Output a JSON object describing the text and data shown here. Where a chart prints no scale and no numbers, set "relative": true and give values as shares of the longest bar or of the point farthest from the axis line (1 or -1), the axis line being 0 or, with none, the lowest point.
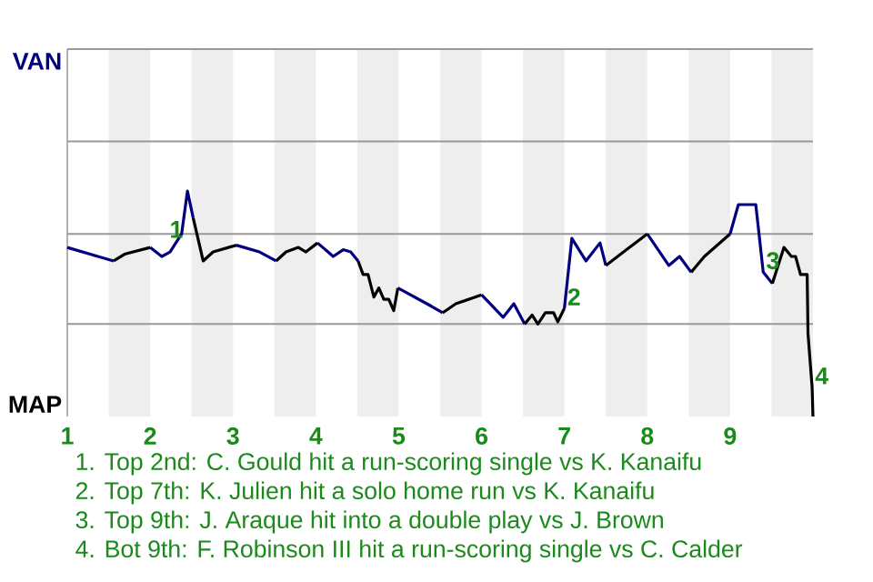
{
  "chart_data": {
    "type": "line",
    "relative": true,
    "xlim": [
      1,
      10
    ],
    "xticks": [
      1,
      2,
      3,
      4,
      5,
      6,
      7,
      8,
      9
    ],
    "ref_lines": [
      {
        "axis": "y",
        "value": 0.41,
        "color": "#999999"
      },
      {
        "axis": "y",
        "value": 0.81,
        "color": "#999999"
      },
      {
        "axis": "y",
        "value": 1.22,
        "color": "#999999"
      },
      {
        "axis": "y",
        "value": 1.63,
        "color": "#999999"
      }
    ],
    "series": [
      {
        "color": "#000080",
        "x": [
          1.0,
          1.37,
          1.56,
          null,
          2.0,
          2.14,
          2.24,
          2.38,
          2.45,
          2.52,
          null,
          3.04,
          3.32,
          3.52,
          null,
          4.02,
          4.21,
          4.33,
          4.42,
          4.51,
          null,
          4.99,
          5.39,
          5.53,
          null,
          6.0,
          6.26,
          6.39,
          6.52,
          null,
          7.0,
          7.09,
          7.26,
          7.43,
          7.5,
          null,
          8.0,
          8.26,
          8.39,
          8.53,
          null,
          9.0,
          9.1,
          9.31,
          9.4,
          9.51
        ],
        "values": [
          0.75,
          0.71,
          0.69,
          null,
          0.75,
          0.71,
          0.73,
          0.81,
          1,
          0.88,
          null,
          0.76,
          0.73,
          0.69,
          null,
          0.77,
          0.71,
          0.74,
          0.73,
          0.69,
          null,
          0.57,
          0.49,
          0.46,
          null,
          0.54,
          0.44,
          0.5,
          0.41,
          null,
          0.48,
          0.79,
          0.69,
          0.77,
          0.67,
          null,
          0.81,
          0.67,
          0.71,
          0.64,
          null,
          0.81,
          0.94,
          0.94,
          0.64,
          0.59
        ]
      },
      {
        "color": "#000000",
        "x": [
          1.56,
          1.69,
          2.0,
          null,
          2.52,
          2.64,
          2.76,
          3.04,
          null,
          3.52,
          3.64,
          3.79,
          3.88,
          4.02,
          null,
          4.51,
          4.57,
          4.63,
          4.7,
          4.76,
          4.82,
          4.88,
          4.94,
          4.99,
          null,
          5.53,
          5.69,
          6.0,
          null,
          6.52,
          6.61,
          6.68,
          6.77,
          6.87,
          6.92,
          7.0,
          null,
          7.5,
          7.75,
          8.0,
          null,
          8.53,
          8.69,
          9.0,
          null,
          9.51,
          9.65,
          9.74,
          9.79,
          9.85,
          9.93,
          9.94,
          9.99,
          10.0
        ],
        "values": [
          0.69,
          0.72,
          0.75,
          null,
          0.88,
          0.69,
          0.73,
          0.76,
          null,
          0.69,
          0.73,
          0.75,
          0.73,
          0.77,
          null,
          0.69,
          0.63,
          0.63,
          0.53,
          0.57,
          0.52,
          0.52,
          0.47,
          0.57,
          null,
          0.46,
          0.5,
          0.54,
          null,
          0.41,
          0.45,
          0.41,
          0.46,
          0.46,
          0.42,
          0.48,
          null,
          0.67,
          0.74,
          0.81,
          null,
          0.64,
          0.71,
          0.81,
          null,
          0.59,
          0.75,
          0.71,
          0.71,
          0.63,
          0.63,
          0.37,
          0.13,
          0
        ]
      }
    ],
    "bands": [
      {
        "axis": "x",
        "from": 1.5,
        "to": 2,
        "color": "#eeeeee"
      },
      {
        "axis": "x",
        "from": 2.5,
        "to": 3,
        "color": "#eeeeee"
      },
      {
        "axis": "x",
        "from": 3.5,
        "to": 4,
        "color": "#eeeeee"
      },
      {
        "axis": "x",
        "from": 4.5,
        "to": 5,
        "color": "#eeeeee"
      },
      {
        "axis": "x",
        "from": 5.5,
        "to": 6,
        "color": "#eeeeee"
      },
      {
        "axis": "x",
        "from": 6.5,
        "to": 7,
        "color": "#eeeeee"
      },
      {
        "axis": "x",
        "from": 7.5,
        "to": 8,
        "color": "#eeeeee"
      },
      {
        "axis": "x",
        "from": 8.5,
        "to": 9,
        "color": "#eeeeee"
      },
      {
        "axis": "x",
        "from": 9.5,
        "to": 10,
        "color": "#eeeeee"
      }
    ],
    "annotations": [
      "VAN",
      "MAP",
      {
        "text": "1",
        "x": 2.52,
        "y": 0.88
      },
      {
        "text": "2",
        "x": 7.0,
        "y": 0.48
      },
      {
        "text": "3",
        "x": 9.4,
        "y": 0.64
      },
      {
        "text": "4",
        "x": 9.99,
        "y": 0.13
      },
      "1. Top 2nd: C. Gould hit a run-scoring single vs K. Kanaifu",
      "2. Top 7th: K. Julien hit a solo home run vs K. Kanaifu",
      "3. Top 9th: J. Araque hit into a double play vs J. Brown",
      "4. Bot 9th: F. Robinson III hit a run-scoring single vs C. Calder"
    ]
  }
}
